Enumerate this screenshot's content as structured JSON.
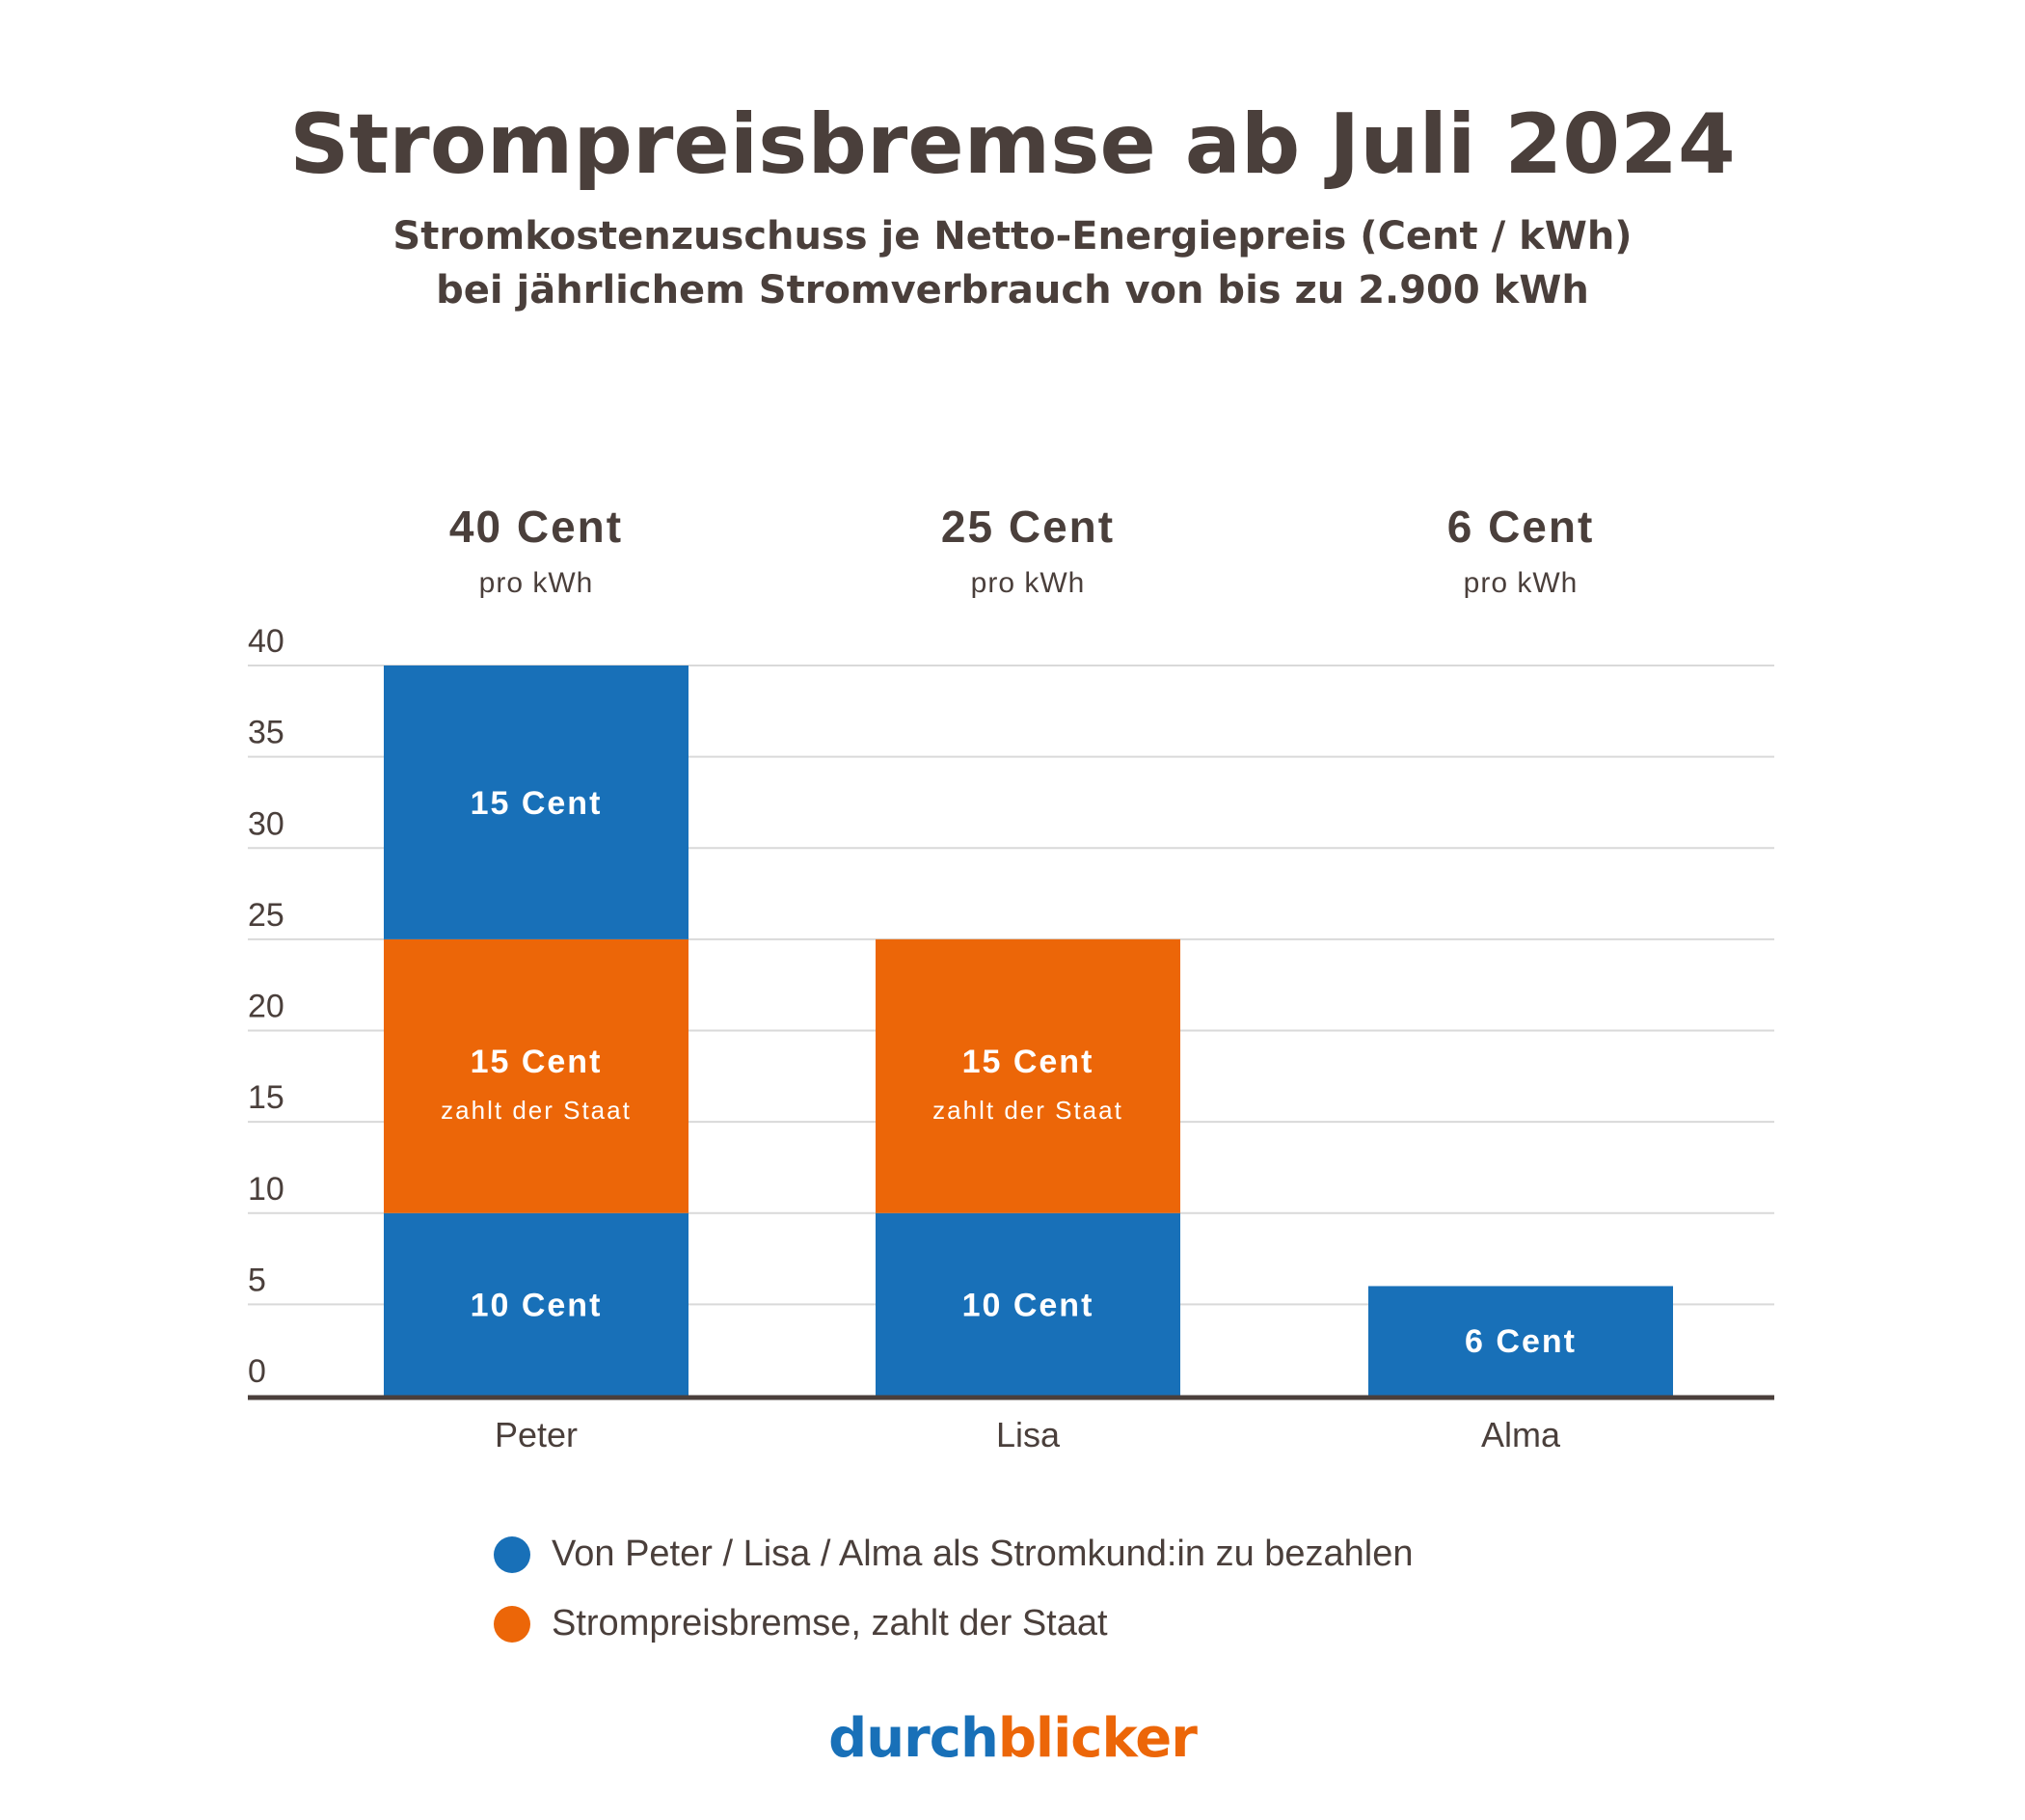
{
  "chart_data": {
    "type": "bar",
    "stacked": true,
    "title": "Strompreisbremse ab Juli 2024",
    "subtitle_lines": [
      "Stromkostenzuschuss je Netto-Energiepreis (Cent / kWh)",
      "bei jährlichem Stromverbrauch von bis zu 2.900 kWh"
    ],
    "categories": [
      "Peter",
      "Lisa",
      "Alma"
    ],
    "totals": [
      {
        "value": "40 Cent",
        "unit": "pro kWh"
      },
      {
        "value": "25 Cent",
        "unit": "pro kWh"
      },
      {
        "value": "6 Cent",
        "unit": "pro kWh"
      }
    ],
    "segments": [
      [
        {
          "value": 10,
          "series": 0,
          "label": "10 Cent",
          "sublabel": ""
        },
        {
          "value": 15,
          "series": 1,
          "label": "15 Cent",
          "sublabel": "zahlt der Staat"
        },
        {
          "value": 15,
          "series": 0,
          "label": "15 Cent",
          "sublabel": ""
        }
      ],
      [
        {
          "value": 10,
          "series": 0,
          "label": "10 Cent",
          "sublabel": ""
        },
        {
          "value": 15,
          "series": 1,
          "label": "15 Cent",
          "sublabel": "zahlt der Staat"
        }
      ],
      [
        {
          "value": 6,
          "series": 0,
          "label": "6 Cent",
          "sublabel": ""
        }
      ]
    ],
    "series": [
      {
        "name": "Von Peter / Lisa / Alma als Stromkund:in zu bezahlen",
        "color": "#1870b8"
      },
      {
        "name": "Strompreisbremse, zahlt der Staat",
        "color": "#ec6608"
      }
    ],
    "ylim": [
      0,
      40
    ],
    "yticks": [
      0,
      5,
      10,
      15,
      20,
      25,
      30,
      35,
      40
    ],
    "grid": true,
    "legend_position": "bottom"
  },
  "brand": {
    "part1": "durch",
    "part2": "blicker",
    "color1": "#1870b8",
    "color2": "#ec6608"
  },
  "colors": {
    "text": "#4a3f3b",
    "grid": "#d9d9d9",
    "axis": "#4a3f3b"
  }
}
